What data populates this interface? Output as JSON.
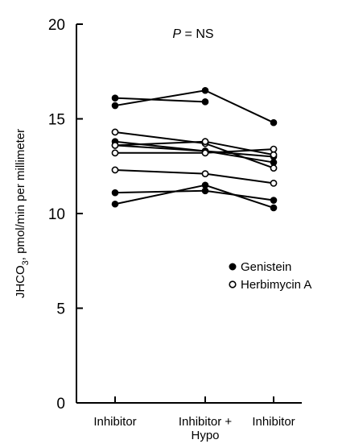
{
  "chart_data": {
    "type": "line",
    "annotation": "P = NS",
    "annotation_italic": "P",
    "annotation_rest": " = NS",
    "ylabel": "JHCO₃, pmol/min per millimeter",
    "ylabel_main": "JHCO",
    "ylabel_sub": "3",
    "ylabel_rest": ", pmol/min per millimeter",
    "ylim": [
      0,
      20
    ],
    "yticks": [
      "0",
      "5",
      "10",
      "15",
      "20"
    ],
    "categories": [
      "Inhibitor",
      "Inhibitor + Hypo",
      "Inhibitor"
    ],
    "category_lines": [
      [
        "Inhibitor"
      ],
      [
        "Inhibitor +",
        "Hypo"
      ],
      [
        "Inhibitor"
      ]
    ],
    "legend": [
      {
        "label": "Genistein",
        "marker": "filled"
      },
      {
        "label": "Herbimycin A",
        "marker": "open"
      }
    ],
    "series": [
      {
        "group": "Genistein",
        "values": [
          16.1,
          15.9,
          null
        ]
      },
      {
        "group": "Genistein",
        "values": [
          15.7,
          16.5,
          14.8
        ]
      },
      {
        "group": "Genistein",
        "values": [
          13.8,
          13.3,
          12.7
        ]
      },
      {
        "group": "Genistein",
        "values": [
          13.6,
          13.3,
          13.0
        ]
      },
      {
        "group": "Genistein",
        "values": [
          11.1,
          11.2,
          10.7
        ]
      },
      {
        "group": "Genistein",
        "values": [
          10.5,
          11.5,
          10.3
        ]
      },
      {
        "group": "Herbimycin A",
        "values": [
          14.3,
          13.7,
          12.4
        ]
      },
      {
        "group": "Herbimycin A",
        "values": [
          13.6,
          13.8,
          13.1
        ]
      },
      {
        "group": "Herbimycin A",
        "values": [
          13.2,
          13.2,
          13.4
        ]
      },
      {
        "group": "Herbimycin A",
        "values": [
          12.3,
          12.1,
          11.6
        ]
      }
    ]
  }
}
